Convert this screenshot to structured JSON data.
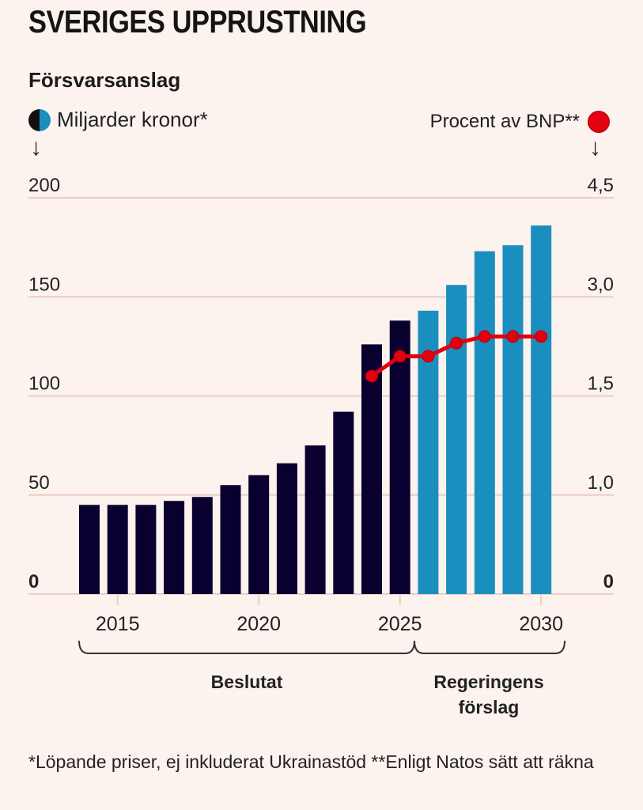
{
  "header": {
    "title": "SVERIGES UPPRUSTNING",
    "subtitle": "Försvarsanslag"
  },
  "legend": {
    "left_label": "Miljarder kronor*",
    "left_icon": "half-dark-half-blue-circle",
    "right_label": "Procent av BNP**",
    "right_icon": "red-circle",
    "arrow_glyph": "↓"
  },
  "colors": {
    "background": "#fcf2ee",
    "decided_bar": "#0a0030",
    "proposed_bar": "#1a8fbf",
    "gdp_line": "#e3000f",
    "gridline": "#e8cfc6"
  },
  "footnote": "*Löpande priser, ej inkluderat Ukrainastöd **Enligt Natos sätt att räkna",
  "chart_data": {
    "type": "bar",
    "title": "Försvarsanslag",
    "categories": [
      2014,
      2015,
      2016,
      2017,
      2018,
      2019,
      2020,
      2021,
      2022,
      2023,
      2024,
      2025,
      2026,
      2027,
      2028,
      2029,
      2030
    ],
    "series": [
      {
        "name": "Miljarder kronor* (Beslutat)",
        "axis": "left",
        "type": "bar",
        "values": [
          45,
          45,
          45,
          47,
          49,
          55,
          60,
          66,
          75,
          92,
          126,
          138,
          null,
          null,
          null,
          null,
          null
        ]
      },
      {
        "name": "Miljarder kronor* (Regeringens förslag)",
        "axis": "left",
        "type": "bar",
        "values": [
          null,
          null,
          null,
          null,
          null,
          null,
          null,
          null,
          null,
          null,
          null,
          null,
          143,
          156,
          173,
          176,
          186
        ]
      },
      {
        "name": "Procent av BNP**",
        "axis": "right",
        "type": "line",
        "values": [
          null,
          null,
          null,
          null,
          null,
          null,
          null,
          null,
          null,
          null,
          1.8,
          2.1,
          2.1,
          2.3,
          2.4,
          2.4,
          2.4
        ]
      }
    ],
    "left_axis": {
      "label": "Miljarder kronor*",
      "ticks": [
        0,
        50,
        100,
        150,
        200
      ],
      "tick_labels": [
        "0",
        "50",
        "100",
        "150",
        "200"
      ],
      "ylim": [
        0,
        200
      ]
    },
    "right_axis": {
      "label": "Procent av BNP**",
      "ticks": [
        0,
        1.0,
        1.5,
        3.0,
        4.5
      ],
      "tick_labels": [
        "0",
        "1,0",
        "1,5",
        "3,0",
        "4,5"
      ]
    },
    "x_ticks": [
      2015,
      2020,
      2025,
      2030
    ],
    "x_tick_labels": [
      "2015",
      "2020",
      "2025",
      "2030"
    ],
    "groups": [
      {
        "label": "Beslutat",
        "from": 2014,
        "to": 2025
      },
      {
        "label": "Regeringens förslag",
        "label_lines": [
          "Regeringens",
          "förslag"
        ],
        "from": 2026,
        "to": 2030
      }
    ],
    "grid": true,
    "legend": "top"
  }
}
